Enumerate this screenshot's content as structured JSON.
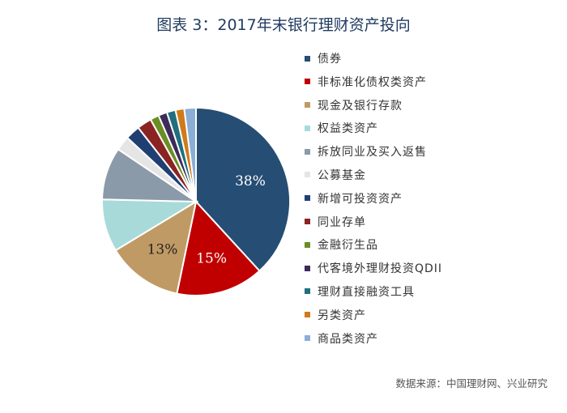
{
  "title": "图表 3：2017年末银行理财资产投向",
  "source": "数据来源：中国理财网、兴业研究",
  "chart_data": {
    "type": "pie",
    "start_angle": 0,
    "direction": "clockwise",
    "legend_position": "right",
    "series": [
      {
        "name": "债券",
        "value": 38,
        "label": "38%",
        "color": "#264d73"
      },
      {
        "name": "非标准化债权类资产",
        "value": 15,
        "label": "15%",
        "color": "#c00000"
      },
      {
        "name": "现金及银行存款",
        "value": 13,
        "label": "13%",
        "color": "#c09a64"
      },
      {
        "name": "权益类资产",
        "value": 9,
        "label": "",
        "color": "#a8dada"
      },
      {
        "name": "拆放同业及买入返售",
        "value": 9,
        "label": "",
        "color": "#8a9aa8"
      },
      {
        "name": "公募基金",
        "value": 2.5,
        "label": "",
        "color": "#e5e5e5"
      },
      {
        "name": "新增可投资资产",
        "value": 2.5,
        "label": "",
        "color": "#1f3f73"
      },
      {
        "name": "同业存单",
        "value": 2.5,
        "label": "",
        "color": "#8b2323"
      },
      {
        "name": "金融衍生品",
        "value": 1.5,
        "label": "",
        "color": "#6b8e23"
      },
      {
        "name": "代客境外理财投资QDII",
        "value": 1.5,
        "label": "",
        "color": "#3d2b5a"
      },
      {
        "name": "理财直接融资工具",
        "value": 1.5,
        "label": "",
        "color": "#1f6f7f"
      },
      {
        "name": "另类资产",
        "value": 1.5,
        "label": "",
        "color": "#d07a1a"
      },
      {
        "name": "商品类资产",
        "value": 2.0,
        "label": "",
        "color": "#8aaed6"
      }
    ]
  }
}
